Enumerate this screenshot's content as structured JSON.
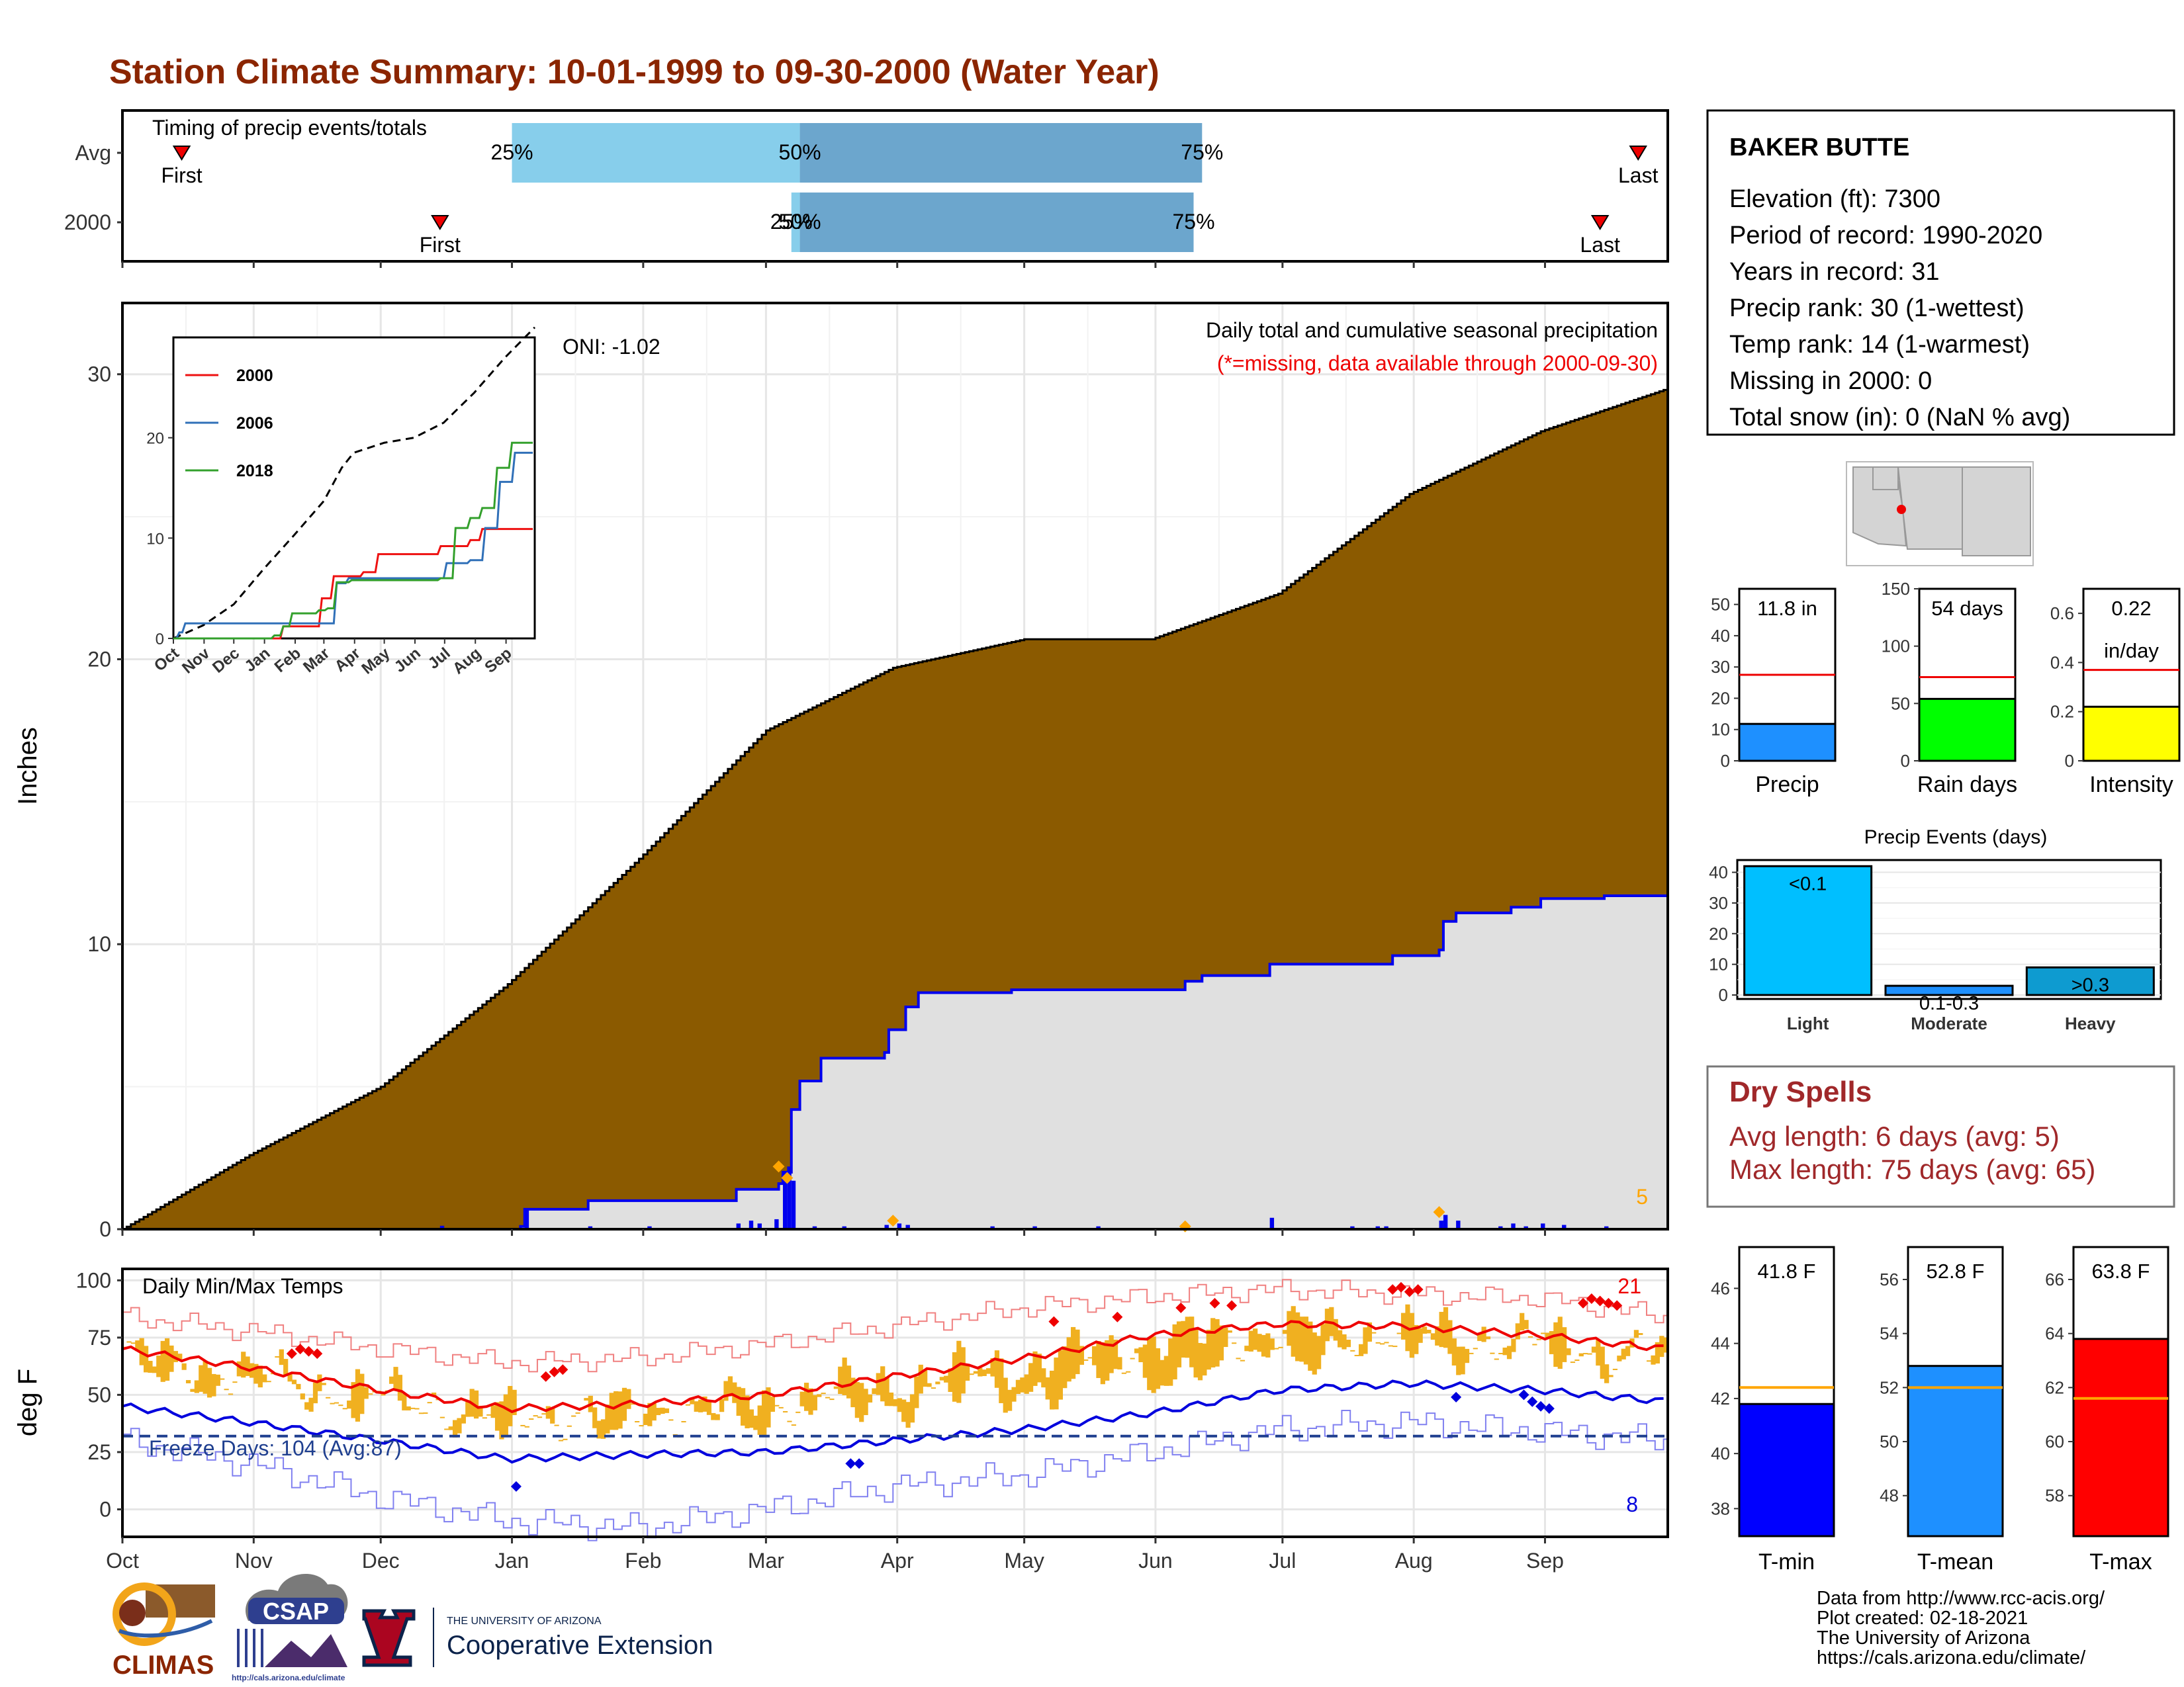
{
  "title": "Station Climate Summary: 10-01-1999 to 09-30-2000 (Water Year)",
  "months": [
    "Oct",
    "Nov",
    "Dec",
    "Jan",
    "Feb",
    "Mar",
    "Apr",
    "May",
    "Jun",
    "Jul",
    "Aug",
    "Sep"
  ],
  "colors": {
    "title": "#8B2500",
    "precip_fill": "#8B5A00",
    "avg_fill": "#E0E0E0",
    "precip_line": "#0000EE",
    "dry_spells": "#A0282A"
  },
  "timing": {
    "label": "Timing of precip events/totals",
    "rows": [
      {
        "name": "Avg",
        "first_day": 14,
        "last_day": 358,
        "p25_day": 92,
        "p50_day": 160,
        "p75_day": 255,
        "p25_label": "25%",
        "p50_label": "50%",
        "p75_label": "75%",
        "first_label": "First",
        "last_label": "Last"
      },
      {
        "name": "2000",
        "first_day": 75,
        "last_day": 349,
        "p25_day": 158,
        "p50_day": 160,
        "p75_day": 253,
        "p25_label": "25%",
        "p50_label": "50%",
        "p75_label": "75%",
        "first_label": "First",
        "last_label": "Last"
      }
    ]
  },
  "precip_chart": {
    "ylabel": "Inches",
    "yticks": [
      0,
      10,
      20,
      30
    ],
    "ylim": [
      0,
      32.5
    ],
    "oni_label": "ONI: -1.02",
    "header": "Daily total and cumulative seasonal precipitation",
    "subheader": "(*=missing, data available through 2000-09-30)",
    "count_label": "5",
    "avg_cumulative": [
      [
        0,
        0
      ],
      [
        30,
        2.6
      ],
      [
        61,
        5.0
      ],
      [
        91,
        8.6
      ],
      [
        122,
        13.0
      ],
      [
        152,
        17.5
      ],
      [
        182,
        19.7
      ],
      [
        213,
        20.7
      ],
      [
        243,
        20.7
      ],
      [
        273,
        22.3
      ],
      [
        304,
        25.8
      ],
      [
        335,
        28.0
      ],
      [
        365,
        29.5
      ]
    ],
    "year_cumulative": [
      [
        0,
        0
      ],
      [
        75,
        0
      ],
      [
        94,
        0.1
      ],
      [
        95,
        0.7
      ],
      [
        110,
        1.0
      ],
      [
        145,
        1.4
      ],
      [
        155,
        1.6
      ],
      [
        156,
        2.0
      ],
      [
        158,
        4.2
      ],
      [
        160,
        5.2
      ],
      [
        165,
        6.0
      ],
      [
        180,
        6.2
      ],
      [
        181,
        7.0
      ],
      [
        185,
        7.8
      ],
      [
        188,
        8.3
      ],
      [
        210,
        8.4
      ],
      [
        250,
        8.4
      ],
      [
        251,
        8.7
      ],
      [
        255,
        8.9
      ],
      [
        270,
        8.9
      ],
      [
        271,
        9.3
      ],
      [
        300,
        9.6
      ],
      [
        311,
        9.8
      ],
      [
        312,
        10.8
      ],
      [
        315,
        11.1
      ],
      [
        328,
        11.3
      ],
      [
        335,
        11.6
      ],
      [
        350,
        11.7
      ],
      [
        364,
        11.7
      ]
    ],
    "daily_bars": [
      [
        75,
        0.12
      ],
      [
        95,
        0.7
      ],
      [
        110,
        0.1
      ],
      [
        124,
        0.1
      ],
      [
        145,
        0.2
      ],
      [
        148,
        0.3
      ],
      [
        150,
        0.2
      ],
      [
        154,
        0.35
      ],
      [
        156,
        2.0
      ],
      [
        157,
        2.2
      ],
      [
        158,
        1.7
      ],
      [
        163,
        0.1
      ],
      [
        170,
        0.1
      ],
      [
        180,
        0.15
      ],
      [
        183,
        0.2
      ],
      [
        185,
        0.15
      ],
      [
        205,
        0.1
      ],
      [
        215,
        0.1
      ],
      [
        230,
        0.1
      ],
      [
        250,
        0.15
      ],
      [
        271,
        0.4
      ],
      [
        290,
        0.1
      ],
      [
        296,
        0.1
      ],
      [
        298,
        0.1
      ],
      [
        311,
        0.3
      ],
      [
        312,
        0.5
      ],
      [
        315,
        0.3
      ],
      [
        325,
        0.1
      ],
      [
        328,
        0.2
      ],
      [
        331,
        0.1
      ],
      [
        335,
        0.2
      ],
      [
        340,
        0.15
      ],
      [
        350,
        0.1
      ]
    ],
    "markers": [
      [
        155,
        2.2
      ],
      [
        157,
        1.8
      ],
      [
        182,
        0.3
      ],
      [
        251,
        0.1
      ],
      [
        311,
        0.6
      ]
    ]
  },
  "inset": {
    "yticks": [
      0,
      10,
      20
    ],
    "ylim": [
      0,
      30
    ],
    "months": [
      "Oct",
      "Nov",
      "Dec",
      "Jan",
      "Feb",
      "Mar",
      "Apr",
      "May",
      "Jun",
      "Jul",
      "Aug",
      "Sep"
    ],
    "series": [
      {
        "name": "2000",
        "color": "#EE1111",
        "values": [
          [
            0,
            0
          ],
          [
            60,
            0
          ],
          [
            110,
            1.2
          ],
          [
            150,
            4.0
          ],
          [
            160,
            6.2
          ],
          [
            190,
            6.6
          ],
          [
            205,
            8.4
          ],
          [
            255,
            8.4
          ],
          [
            270,
            9.2
          ],
          [
            300,
            9.8
          ],
          [
            311,
            10.9
          ],
          [
            365,
            11.8
          ]
        ]
      },
      {
        "name": "2006",
        "color": "#3070B8",
        "values": [
          [
            0,
            0
          ],
          [
            5,
            0.6
          ],
          [
            10,
            1.5
          ],
          [
            130,
            1.5
          ],
          [
            160,
            1.5
          ],
          [
            165,
            5.5
          ],
          [
            175,
            6.0
          ],
          [
            260,
            6.0
          ],
          [
            275,
            7.5
          ],
          [
            300,
            7.8
          ],
          [
            315,
            11.0
          ],
          [
            330,
            15.6
          ],
          [
            345,
            18.5
          ],
          [
            365,
            19.2
          ]
        ]
      },
      {
        "name": "2018",
        "color": "#33A02C",
        "values": [
          [
            0,
            0
          ],
          [
            100,
            0.3
          ],
          [
            110,
            1.2
          ],
          [
            120,
            2.5
          ],
          [
            145,
            2.8
          ],
          [
            155,
            3.0
          ],
          [
            165,
            5.6
          ],
          [
            180,
            5.8
          ],
          [
            270,
            6.0
          ],
          [
            285,
            11.0
          ],
          [
            300,
            12.0
          ],
          [
            310,
            13.0
          ],
          [
            325,
            17.0
          ],
          [
            340,
            19.5
          ],
          [
            365,
            20.0
          ]
        ]
      }
    ],
    "avg_values": [
      [
        0,
        0
      ],
      [
        30,
        1.3
      ],
      [
        61,
        3.4
      ],
      [
        91,
        6.9
      ],
      [
        122,
        10.3
      ],
      [
        152,
        13.7
      ],
      [
        170,
        17.0
      ],
      [
        182,
        18.5
      ],
      [
        213,
        19.5
      ],
      [
        243,
        20.0
      ],
      [
        273,
        21.5
      ],
      [
        304,
        24.5
      ],
      [
        335,
        28.0
      ],
      [
        365,
        31.0
      ]
    ]
  },
  "temp_chart": {
    "ylabel": "deg F",
    "yticks": [
      0,
      25,
      50,
      75,
      100
    ],
    "ylim": [
      -12,
      105
    ],
    "header": "Daily Min/Max Temps",
    "freeze_label": "Freeze Days: 104 (Avg:87)",
    "freeze_line": 32,
    "hot_count": "21",
    "cold_count": "8",
    "avg_max": [
      [
        0,
        70
      ],
      [
        30,
        62
      ],
      [
        61,
        52
      ],
      [
        91,
        44
      ],
      [
        122,
        46
      ],
      [
        152,
        50
      ],
      [
        182,
        58
      ],
      [
        213,
        66
      ],
      [
        243,
        76
      ],
      [
        273,
        81
      ],
      [
        304,
        80
      ],
      [
        335,
        76
      ],
      [
        365,
        70
      ]
    ],
    "avg_min": [
      [
        0,
        45
      ],
      [
        30,
        38
      ],
      [
        61,
        30
      ],
      [
        91,
        22
      ],
      [
        122,
        24
      ],
      [
        152,
        25
      ],
      [
        182,
        30
      ],
      [
        213,
        35
      ],
      [
        243,
        42
      ],
      [
        273,
        52
      ],
      [
        304,
        55
      ],
      [
        335,
        52
      ],
      [
        365,
        47
      ]
    ],
    "record_max": [
      [
        0,
        84
      ],
      [
        30,
        78
      ],
      [
        61,
        70
      ],
      [
        91,
        64
      ],
      [
        122,
        66
      ],
      [
        152,
        72
      ],
      [
        182,
        80
      ],
      [
        213,
        88
      ],
      [
        243,
        93
      ],
      [
        273,
        96
      ],
      [
        304,
        94
      ],
      [
        335,
        92
      ],
      [
        365,
        84
      ]
    ],
    "record_min": [
      [
        0,
        30
      ],
      [
        30,
        20
      ],
      [
        61,
        5
      ],
      [
        91,
        -5
      ],
      [
        122,
        -8
      ],
      [
        152,
        0
      ],
      [
        182,
        10
      ],
      [
        213,
        15
      ],
      [
        243,
        25
      ],
      [
        273,
        35
      ],
      [
        304,
        38
      ],
      [
        335,
        34
      ],
      [
        365,
        30
      ]
    ]
  },
  "station": {
    "name": "BAKER BUTTE",
    "lines": [
      "Elevation (ft): 7300",
      "Period of record: 1990-2020",
      "Years in record: 31",
      "Precip rank: 30 (1-wettest)",
      "Temp rank: 14 (1-warmest)",
      "Missing in 2000: 0",
      "Total snow (in): 0 (NaN % avg)"
    ]
  },
  "summary_bars": [
    {
      "xlabel": "Precip",
      "value": 11.8,
      "avg": 27.5,
      "label1": "11.8 in",
      "label2": "",
      "ylim": [
        0,
        55
      ],
      "yticks": [
        0,
        10,
        20,
        30,
        40,
        50
      ],
      "color": "#1E90FF"
    },
    {
      "xlabel": "Rain days",
      "value": 54,
      "avg": 73,
      "label1": "54 days",
      "label2": "",
      "ylim": [
        0,
        150
      ],
      "yticks": [
        0,
        50,
        100,
        150
      ],
      "color": "#00FF00"
    },
    {
      "xlabel": "Intensity",
      "value": 0.22,
      "avg": 0.37,
      "label1": "0.22",
      "label2": "in/day",
      "ylim": [
        0,
        0.7
      ],
      "yticks": [
        0.0,
        0.2,
        0.4,
        0.6
      ],
      "color": "#FFFF00"
    }
  ],
  "events": {
    "title": "Precip Events (days)",
    "categories": [
      "Light",
      "Moderate",
      "Heavy"
    ],
    "values": [
      42,
      3,
      9
    ],
    "labels": [
      "<0.1",
      "0.1-0.3",
      ">0.3"
    ],
    "colors": [
      "#00BFFF",
      "#1E90FF",
      "#0E9BD0"
    ],
    "yticks": [
      0,
      10,
      20,
      30,
      40
    ],
    "ylim": [
      0,
      44
    ]
  },
  "dry_spells": {
    "title": "Dry Spells",
    "avg_line": "Avg length: 6 days (avg: 5)",
    "max_line": "Max length: 75 days (avg: 65)"
  },
  "temp_bars": [
    {
      "xlabel": "T-min",
      "value": 41.8,
      "avg": 42.4,
      "label": "41.8 F",
      "ylim": [
        37,
        47.5
      ],
      "yticks": [
        38,
        40,
        42,
        44,
        46
      ],
      "color": "#0000FF"
    },
    {
      "xlabel": "T-mean",
      "value": 52.8,
      "avg": 52.0,
      "label": "52.8 F",
      "ylim": [
        46.5,
        57.2
      ],
      "yticks": [
        48,
        50,
        52,
        54,
        56
      ],
      "color": "#1E90FF"
    },
    {
      "xlabel": "T-max",
      "value": 63.8,
      "avg": 61.6,
      "label": "63.8 F",
      "ylim": [
        56.5,
        67.2
      ],
      "yticks": [
        58,
        60,
        62,
        64,
        66
      ],
      "color": "#FF0000"
    }
  ],
  "footer": {
    "lines": [
      "Data from http://www.rcc-acis.org/",
      "Plot created: 02-18-2021",
      "The University of Arizona",
      "https://cals.arizona.edu/climate/"
    ],
    "climas": "CLIMAS",
    "csap": "CSAP",
    "csap_url": "http://cals.arizona.edu/climate",
    "ua_line1": "THE UNIVERSITY OF ARIZONA",
    "ua_line2": "Cooperative Extension"
  }
}
